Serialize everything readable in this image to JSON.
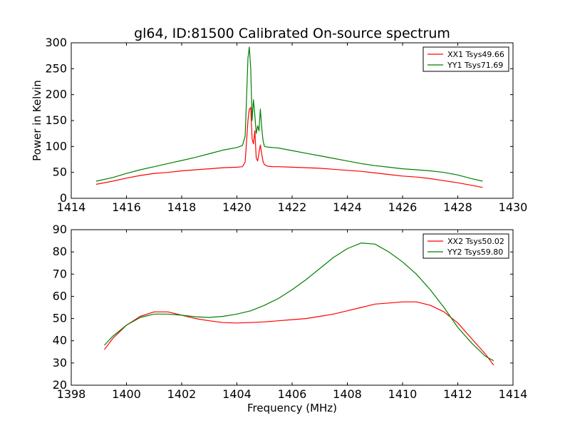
{
  "title": "gl64, ID:81500 Calibrated On-source spectrum",
  "chart_data": [
    {
      "type": "line",
      "title": "gl64, ID:81500 Calibrated On-source spectrum",
      "xlabel": "",
      "ylabel": "Power in Kelvin",
      "xlim": [
        1414,
        1430
      ],
      "ylim": [
        0,
        300
      ],
      "xticks": [
        "1414",
        "1416",
        "1418",
        "1420",
        "1422",
        "1424",
        "1426",
        "1428",
        "1430"
      ],
      "yticks": [
        "0",
        "50",
        "100",
        "150",
        "200",
        "250",
        "300"
      ],
      "grid": false,
      "legend": "top-right",
      "series": [
        {
          "name": "XX1 Tsys49.66",
          "color": "#ff0000",
          "x": [
            1414.9,
            1415.5,
            1416.0,
            1416.5,
            1417.0,
            1417.5,
            1418.0,
            1418.5,
            1419.0,
            1419.5,
            1420.0,
            1420.2,
            1420.3,
            1420.4,
            1420.45,
            1420.5,
            1420.55,
            1420.6,
            1420.65,
            1420.7,
            1420.75,
            1420.8,
            1420.85,
            1420.9,
            1420.95,
            1421.0,
            1421.1,
            1421.3,
            1421.5,
            1422.0,
            1422.5,
            1423.0,
            1423.5,
            1424.0,
            1424.5,
            1425.0,
            1425.5,
            1426.0,
            1426.5,
            1427.0,
            1427.5,
            1428.0,
            1428.5,
            1428.9
          ],
          "y": [
            27,
            33,
            39,
            44,
            48,
            50,
            53,
            55,
            57,
            59,
            60,
            61,
            70,
            150,
            172,
            175,
            115,
            105,
            130,
            78,
            72,
            88,
            103,
            85,
            70,
            65,
            62,
            61,
            61,
            60,
            59,
            58,
            56,
            54,
            52,
            49,
            46,
            43,
            41,
            38,
            34,
            30,
            25,
            21
          ]
        },
        {
          "name": "YY1 Tsys71.69",
          "color": "#008000",
          "x": [
            1414.9,
            1415.5,
            1416.0,
            1416.5,
            1417.0,
            1417.5,
            1418.0,
            1418.5,
            1419.0,
            1419.5,
            1420.0,
            1420.2,
            1420.3,
            1420.4,
            1420.45,
            1420.5,
            1420.55,
            1420.6,
            1420.65,
            1420.7,
            1420.75,
            1420.8,
            1420.85,
            1420.9,
            1420.95,
            1421.0,
            1421.1,
            1421.3,
            1421.5,
            1422.0,
            1422.5,
            1423.0,
            1423.5,
            1424.0,
            1424.5,
            1425.0,
            1425.5,
            1426.0,
            1426.5,
            1427.0,
            1427.5,
            1428.0,
            1428.5,
            1428.9
          ],
          "y": [
            33,
            40,
            48,
            55,
            61,
            67,
            73,
            79,
            86,
            93,
            98,
            102,
            120,
            270,
            292,
            250,
            150,
            190,
            160,
            125,
            140,
            130,
            172,
            135,
            110,
            100,
            99,
            98,
            97,
            92,
            87,
            82,
            77,
            72,
            67,
            63,
            60,
            57,
            55,
            53,
            50,
            45,
            38,
            33
          ]
        }
      ]
    },
    {
      "type": "line",
      "title": "",
      "xlabel": "Frequency (MHz)",
      "ylabel": "",
      "xlim": [
        1398,
        1414
      ],
      "ylim": [
        20,
        90
      ],
      "xticks": [
        "1398",
        "1400",
        "1402",
        "1404",
        "1406",
        "1408",
        "1410",
        "1412",
        "1414"
      ],
      "yticks": [
        "20",
        "30",
        "40",
        "50",
        "60",
        "70",
        "80",
        "90"
      ],
      "grid": false,
      "legend": "top-right",
      "series": [
        {
          "name": "XX2 Tsys50.02",
          "color": "#ff0000",
          "x": [
            1399.2,
            1399.5,
            1400.0,
            1400.5,
            1401.0,
            1401.5,
            1402.0,
            1402.5,
            1403.0,
            1403.5,
            1404.0,
            1404.5,
            1405.0,
            1405.5,
            1406.0,
            1406.5,
            1407.0,
            1407.5,
            1408.0,
            1408.5,
            1409.0,
            1409.5,
            1410.0,
            1410.5,
            1411.0,
            1411.5,
            1412.0,
            1412.5,
            1413.0,
            1413.3
          ],
          "y": [
            36,
            41,
            47,
            51,
            53,
            53,
            51.5,
            50,
            49,
            48.2,
            48,
            48.2,
            48.5,
            49,
            49.5,
            50,
            51,
            52,
            53.5,
            55,
            56.5,
            57,
            57.5,
            57.5,
            56,
            53,
            48,
            41,
            34,
            29
          ]
        },
        {
          "name": "YY2 Tsys59.80",
          "color": "#008000",
          "x": [
            1399.2,
            1399.5,
            1400.0,
            1400.5,
            1401.0,
            1401.5,
            1402.0,
            1402.5,
            1403.0,
            1403.5,
            1404.0,
            1404.5,
            1405.0,
            1405.5,
            1406.0,
            1406.5,
            1407.0,
            1407.5,
            1408.0,
            1408.5,
            1409.0,
            1409.5,
            1410.0,
            1410.5,
            1411.0,
            1411.5,
            1412.0,
            1412.5,
            1413.0,
            1413.3
          ],
          "y": [
            38,
            42,
            47,
            50.5,
            52,
            52,
            51.5,
            50.8,
            50.5,
            51,
            52,
            53.5,
            56,
            59,
            63,
            67.5,
            72.5,
            77.5,
            81.5,
            84,
            83.5,
            80,
            75.5,
            70,
            63,
            55,
            46,
            39,
            33,
            31
          ]
        }
      ]
    }
  ]
}
